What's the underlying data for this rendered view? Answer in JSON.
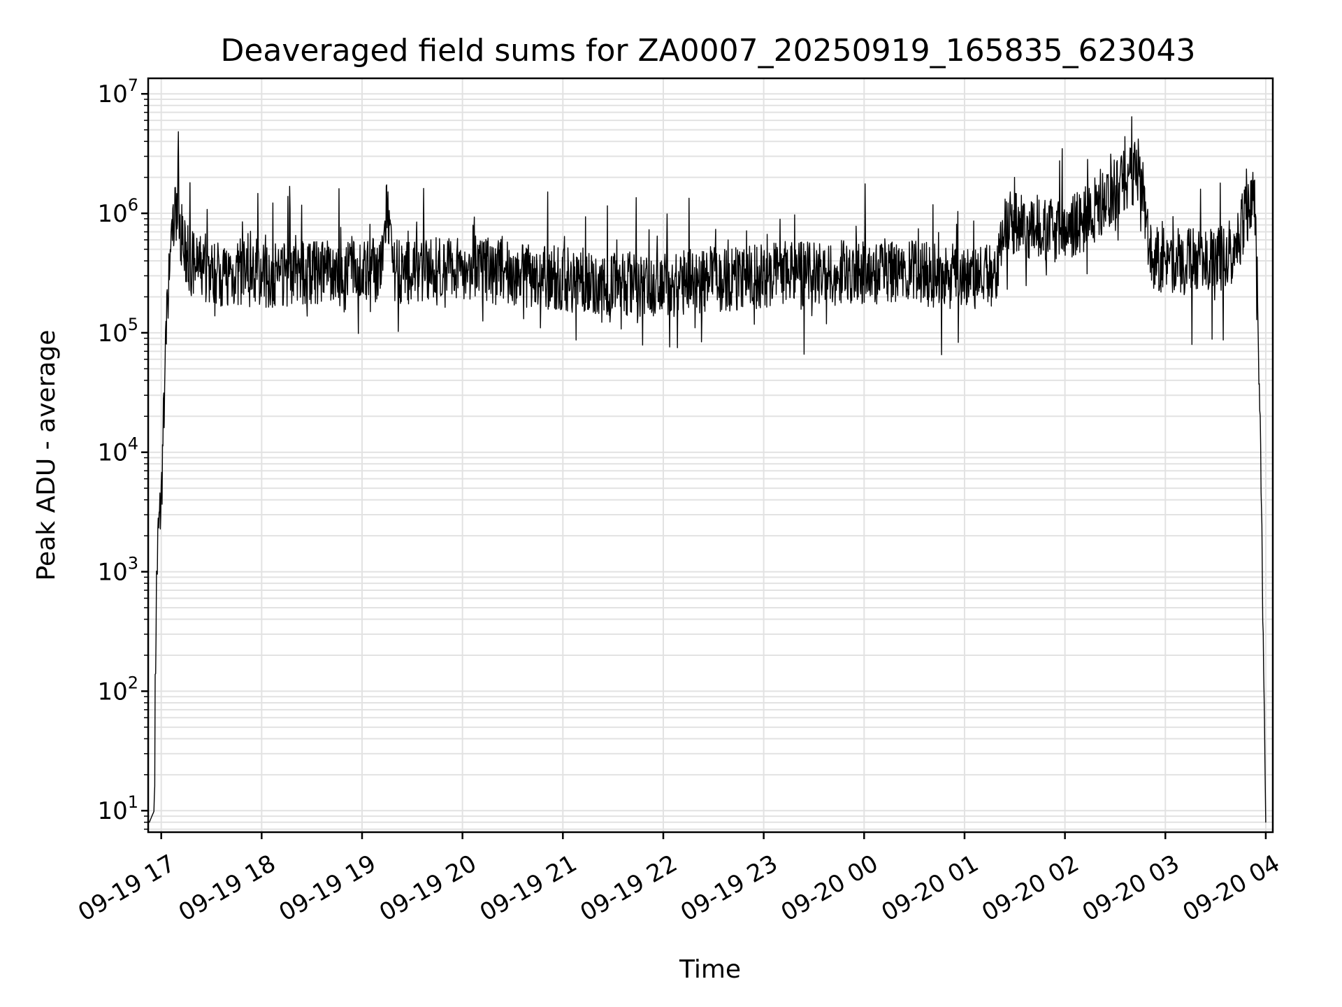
{
  "chart_data": {
    "type": "line",
    "title": "Deaveraged field sums for ZA0007_20250919_165835_623043",
    "xlabel": "Time",
    "ylabel": "Peak ADU - average",
    "yscale": "log",
    "ylim_log10": [
      0.82,
      7.13
    ],
    "xlim_hours_from_0919_17": [
      -0.13,
      11.07
    ],
    "grid": true,
    "x_ticks": [
      {
        "label": "09-19 17",
        "hours": 0
      },
      {
        "label": "09-19 18",
        "hours": 1
      },
      {
        "label": "09-19 19",
        "hours": 2
      },
      {
        "label": "09-19 20",
        "hours": 3
      },
      {
        "label": "09-19 21",
        "hours": 4
      },
      {
        "label": "09-19 22",
        "hours": 5
      },
      {
        "label": "09-19 23",
        "hours": 6
      },
      {
        "label": "09-20 00",
        "hours": 7
      },
      {
        "label": "09-20 01",
        "hours": 8
      },
      {
        "label": "09-20 02",
        "hours": 9
      },
      {
        "label": "09-20 03",
        "hours": 10
      },
      {
        "label": "09-20 04",
        "hours": 11
      }
    ],
    "y_ticks": [
      {
        "base": "10",
        "exp": "1",
        "log10": 1
      },
      {
        "base": "10",
        "exp": "2",
        "log10": 2
      },
      {
        "base": "10",
        "exp": "3",
        "log10": 3
      },
      {
        "base": "10",
        "exp": "4",
        "log10": 4
      },
      {
        "base": "10",
        "exp": "5",
        "log10": 5
      },
      {
        "base": "10",
        "exp": "6",
        "log10": 6
      },
      {
        "base": "10",
        "exp": "7",
        "log10": 7
      }
    ],
    "series": [
      {
        "name": "field sums",
        "color": "#000000",
        "envelope_hours": [
          -0.12,
          -0.07,
          -0.05,
          -0.03,
          0.0,
          0.05,
          0.1,
          0.15,
          0.25,
          0.5,
          1.0,
          1.5,
          2.0,
          2.2,
          2.25,
          2.3,
          2.5,
          3.0,
          3.5,
          4.0,
          4.5,
          5.0,
          5.5,
          6.0,
          6.5,
          7.0,
          7.5,
          7.8,
          8.0,
          8.3,
          8.4,
          8.6,
          9.0,
          9.3,
          9.6,
          9.75,
          9.85,
          10.0,
          10.5,
          10.7,
          10.8,
          10.9,
          10.95,
          11.0
        ],
        "envelope_log10": [
          0.9,
          1.0,
          2.8,
          3.3,
          3.6,
          5.0,
          5.8,
          6.05,
          5.6,
          5.5,
          5.48,
          5.5,
          5.5,
          5.55,
          6.1,
          5.5,
          5.52,
          5.55,
          5.5,
          5.45,
          5.42,
          5.4,
          5.45,
          5.47,
          5.5,
          5.5,
          5.5,
          5.48,
          5.45,
          5.5,
          5.95,
          5.9,
          5.85,
          6.0,
          6.3,
          6.4,
          5.65,
          5.6,
          5.6,
          5.7,
          6.0,
          6.1,
          4.0,
          0.9
        ]
      }
    ]
  }
}
